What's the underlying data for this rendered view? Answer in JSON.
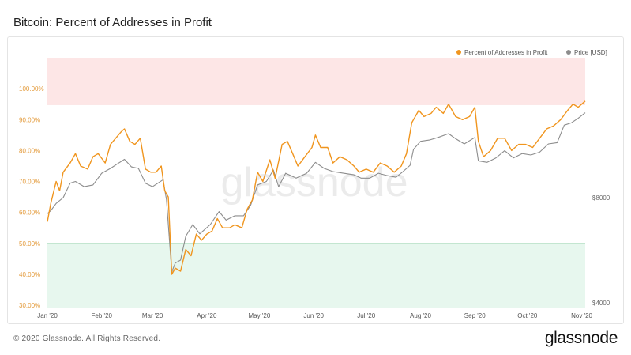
{
  "title": "Bitcoin: Percent of Addresses in Profit",
  "footer": {
    "copyright": "© 2020 Glassnode. All Rights Reserved.",
    "brand": "glassnode"
  },
  "watermark": "glassnode",
  "colors": {
    "profit": "#f0951e",
    "price": "#8d8d8d",
    "upper_zone": "#fde6e6",
    "upper_line": "#f4a0a0",
    "lower_zone": "#e7f7ee",
    "lower_line": "#9fd8b5"
  },
  "chart_data": {
    "type": "line",
    "title": "Bitcoin: Percent of Addresses in Profit",
    "x_ticks": [
      "Jan '20",
      "Feb '20",
      "Mar '20",
      "Apr '20",
      "May '20",
      "Jun '20",
      "Jul '20",
      "Aug '20",
      "Sep '20",
      "Oct '20",
      "Nov '20"
    ],
    "y_left_ticks": [
      "30.00%",
      "40.00%",
      "50.00%",
      "60.00%",
      "70.00%",
      "80.00%",
      "90.00%",
      "100.00%"
    ],
    "y_left_range": [
      29,
      110
    ],
    "y_right_ticks": [
      "$4000",
      "$8000"
    ],
    "price_log_scale": true,
    "x_range": [
      "2020-01-01",
      "2020-11-03"
    ],
    "legend_position": "top-right",
    "zones": [
      {
        "name": "upper",
        "from": 95,
        "to": 110
      },
      {
        "name": "lower",
        "from": 29,
        "to": 50
      }
    ],
    "series": [
      {
        "name": "Percent of Addresses in Profit",
        "axis": "left",
        "points": [
          [
            "2020-01-01",
            57
          ],
          [
            "2020-01-03",
            63
          ],
          [
            "2020-01-06",
            70
          ],
          [
            "2020-01-08",
            67
          ],
          [
            "2020-01-10",
            73
          ],
          [
            "2020-01-14",
            76
          ],
          [
            "2020-01-17",
            79
          ],
          [
            "2020-01-20",
            75
          ],
          [
            "2020-01-24",
            74
          ],
          [
            "2020-01-27",
            78
          ],
          [
            "2020-01-30",
            79
          ],
          [
            "2020-02-03",
            76
          ],
          [
            "2020-02-06",
            82
          ],
          [
            "2020-02-09",
            84
          ],
          [
            "2020-02-12",
            86
          ],
          [
            "2020-02-14",
            87
          ],
          [
            "2020-02-17",
            83
          ],
          [
            "2020-02-20",
            82
          ],
          [
            "2020-02-23",
            84
          ],
          [
            "2020-02-26",
            74
          ],
          [
            "2020-02-29",
            73
          ],
          [
            "2020-03-03",
            73
          ],
          [
            "2020-03-06",
            75
          ],
          [
            "2020-03-08",
            67
          ],
          [
            "2020-03-10",
            65
          ],
          [
            "2020-03-12",
            40
          ],
          [
            "2020-03-14",
            42
          ],
          [
            "2020-03-17",
            41
          ],
          [
            "2020-03-20",
            48
          ],
          [
            "2020-03-23",
            46
          ],
          [
            "2020-03-26",
            53
          ],
          [
            "2020-03-29",
            51
          ],
          [
            "2020-04-01",
            53
          ],
          [
            "2020-04-04",
            54
          ],
          [
            "2020-04-07",
            58
          ],
          [
            "2020-04-10",
            55
          ],
          [
            "2020-04-14",
            55
          ],
          [
            "2020-04-17",
            56
          ],
          [
            "2020-04-21",
            55
          ],
          [
            "2020-04-24",
            61
          ],
          [
            "2020-04-27",
            64
          ],
          [
            "2020-04-30",
            73
          ],
          [
            "2020-05-03",
            70
          ],
          [
            "2020-05-07",
            77
          ],
          [
            "2020-05-10",
            71
          ],
          [
            "2020-05-14",
            82
          ],
          [
            "2020-05-17",
            83
          ],
          [
            "2020-05-20",
            79
          ],
          [
            "2020-05-23",
            75
          ],
          [
            "2020-05-27",
            78
          ],
          [
            "2020-05-31",
            81
          ],
          [
            "2020-06-02",
            85
          ],
          [
            "2020-06-05",
            81
          ],
          [
            "2020-06-09",
            81
          ],
          [
            "2020-06-12",
            76
          ],
          [
            "2020-06-16",
            78
          ],
          [
            "2020-06-20",
            77
          ],
          [
            "2020-06-24",
            75
          ],
          [
            "2020-06-27",
            73
          ],
          [
            "2020-07-01",
            74
          ],
          [
            "2020-07-05",
            73
          ],
          [
            "2020-07-09",
            76
          ],
          [
            "2020-07-13",
            75
          ],
          [
            "2020-07-17",
            73
          ],
          [
            "2020-07-21",
            75
          ],
          [
            "2020-07-24",
            79
          ],
          [
            "2020-07-27",
            89
          ],
          [
            "2020-07-31",
            93
          ],
          [
            "2020-08-03",
            91
          ],
          [
            "2020-08-07",
            92
          ],
          [
            "2020-08-10",
            94
          ],
          [
            "2020-08-14",
            92
          ],
          [
            "2020-08-17",
            95
          ],
          [
            "2020-08-21",
            91
          ],
          [
            "2020-08-25",
            90
          ],
          [
            "2020-08-29",
            91
          ],
          [
            "2020-09-01",
            94
          ],
          [
            "2020-09-03",
            83
          ],
          [
            "2020-09-06",
            78
          ],
          [
            "2020-09-10",
            80
          ],
          [
            "2020-09-14",
            84
          ],
          [
            "2020-09-18",
            84
          ],
          [
            "2020-09-22",
            80
          ],
          [
            "2020-09-26",
            82
          ],
          [
            "2020-09-30",
            82
          ],
          [
            "2020-10-04",
            81
          ],
          [
            "2020-10-08",
            84
          ],
          [
            "2020-10-12",
            87
          ],
          [
            "2020-10-16",
            88
          ],
          [
            "2020-10-20",
            90
          ],
          [
            "2020-10-24",
            93
          ],
          [
            "2020-10-27",
            95
          ],
          [
            "2020-10-30",
            94
          ],
          [
            "2020-11-03",
            96
          ]
        ]
      },
      {
        "name": "Price [USD]",
        "axis": "right",
        "points": [
          [
            "2020-01-01",
            7200
          ],
          [
            "2020-01-03",
            7350
          ],
          [
            "2020-01-06",
            7700
          ],
          [
            "2020-01-10",
            8000
          ],
          [
            "2020-01-14",
            8800
          ],
          [
            "2020-01-17",
            8900
          ],
          [
            "2020-01-22",
            8600
          ],
          [
            "2020-01-27",
            8700
          ],
          [
            "2020-02-01",
            9400
          ],
          [
            "2020-02-06",
            9700
          ],
          [
            "2020-02-10",
            10000
          ],
          [
            "2020-02-14",
            10300
          ],
          [
            "2020-02-18",
            9800
          ],
          [
            "2020-02-22",
            9700
          ],
          [
            "2020-02-26",
            8800
          ],
          [
            "2020-03-01",
            8600
          ],
          [
            "2020-03-07",
            9000
          ],
          [
            "2020-03-09",
            7900
          ],
          [
            "2020-03-12",
            4900
          ],
          [
            "2020-03-14",
            5200
          ],
          [
            "2020-03-17",
            5300
          ],
          [
            "2020-03-20",
            6200
          ],
          [
            "2020-03-24",
            6700
          ],
          [
            "2020-03-28",
            6300
          ],
          [
            "2020-04-03",
            6700
          ],
          [
            "2020-04-08",
            7300
          ],
          [
            "2020-04-12",
            6900
          ],
          [
            "2020-04-17",
            7100
          ],
          [
            "2020-04-22",
            7100
          ],
          [
            "2020-04-26",
            7600
          ],
          [
            "2020-04-30",
            8700
          ],
          [
            "2020-05-05",
            8900
          ],
          [
            "2020-05-09",
            9600
          ],
          [
            "2020-05-12",
            8600
          ],
          [
            "2020-05-16",
            9400
          ],
          [
            "2020-05-22",
            9100
          ],
          [
            "2020-05-28",
            9400
          ],
          [
            "2020-06-02",
            10100
          ],
          [
            "2020-06-07",
            9700
          ],
          [
            "2020-06-12",
            9500
          ],
          [
            "2020-06-18",
            9400
          ],
          [
            "2020-06-24",
            9300
          ],
          [
            "2020-06-28",
            9100
          ],
          [
            "2020-07-03",
            9100
          ],
          [
            "2020-07-08",
            9400
          ],
          [
            "2020-07-13",
            9250
          ],
          [
            "2020-07-18",
            9150
          ],
          [
            "2020-07-22",
            9500
          ],
          [
            "2020-07-26",
            9900
          ],
          [
            "2020-07-28",
            11000
          ],
          [
            "2020-08-01",
            11600
          ],
          [
            "2020-08-06",
            11700
          ],
          [
            "2020-08-11",
            11900
          ],
          [
            "2020-08-17",
            12200
          ],
          [
            "2020-08-21",
            11800
          ],
          [
            "2020-08-26",
            11400
          ],
          [
            "2020-09-01",
            11900
          ],
          [
            "2020-09-03",
            10200
          ],
          [
            "2020-09-08",
            10100
          ],
          [
            "2020-09-13",
            10400
          ],
          [
            "2020-09-18",
            10900
          ],
          [
            "2020-09-23",
            10400
          ],
          [
            "2020-09-28",
            10700
          ],
          [
            "2020-10-03",
            10600
          ],
          [
            "2020-10-08",
            10800
          ],
          [
            "2020-10-13",
            11400
          ],
          [
            "2020-10-18",
            11500
          ],
          [
            "2020-10-22",
            12900
          ],
          [
            "2020-10-26",
            13100
          ],
          [
            "2020-10-30",
            13500
          ],
          [
            "2020-11-03",
            14000
          ]
        ]
      }
    ]
  }
}
